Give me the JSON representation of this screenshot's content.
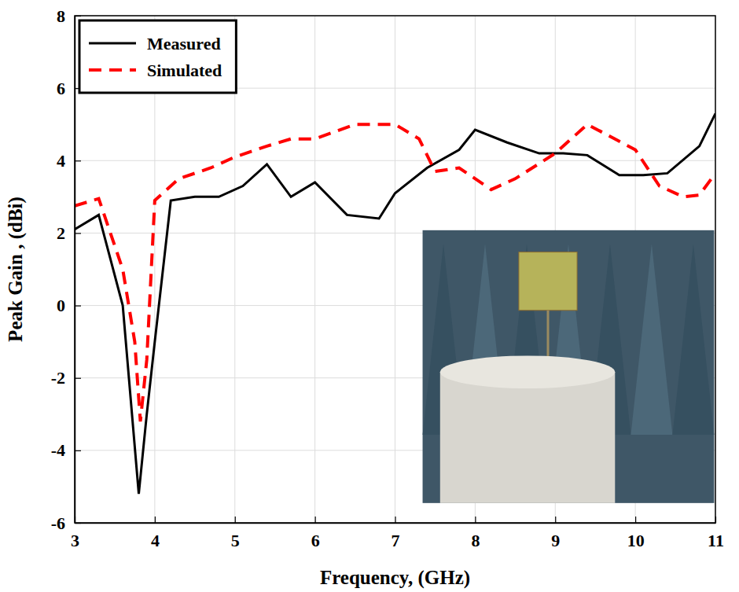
{
  "chart_data": {
    "type": "line",
    "x_label": "Frequency, (GHz)",
    "y_label": "Peak Gain , (dBi)",
    "xlim": [
      3,
      11
    ],
    "xticks": [
      3,
      4,
      5,
      6,
      7,
      8,
      9,
      10,
      11
    ],
    "ylim": [
      -6,
      8
    ],
    "yticks": [
      -6,
      -4,
      -2,
      0,
      2,
      4,
      6,
      8
    ],
    "grid": true,
    "legend": "upper left",
    "series": [
      {
        "name": "Measured",
        "color": "#000000",
        "line_style": "solid",
        "x": [
          3.0,
          3.3,
          3.6,
          3.8,
          3.9,
          4.0,
          4.2,
          4.5,
          4.8,
          5.1,
          5.4,
          5.7,
          6.0,
          6.4,
          6.8,
          7.0,
          7.4,
          7.8,
          8.0,
          8.4,
          8.8,
          9.1,
          9.4,
          9.8,
          10.1,
          10.4,
          10.8,
          11.0
        ],
        "values": [
          2.1,
          2.5,
          0.0,
          -5.2,
          -3.0,
          -1.0,
          2.9,
          3.0,
          3.0,
          3.3,
          3.9,
          3.0,
          3.4,
          2.5,
          2.4,
          3.1,
          3.8,
          4.3,
          4.85,
          4.5,
          4.2,
          4.2,
          4.15,
          3.6,
          3.6,
          3.65,
          4.4,
          5.3
        ]
      },
      {
        "name": "Simulated",
        "color": "#ff0000",
        "line_style": "dashed",
        "x": [
          3.0,
          3.3,
          3.6,
          3.75,
          3.82,
          3.9,
          4.0,
          4.3,
          4.7,
          5.0,
          5.4,
          5.7,
          6.0,
          6.5,
          7.0,
          7.3,
          7.5,
          7.8,
          8.2,
          8.5,
          9.0,
          9.4,
          10.0,
          10.3,
          10.6,
          10.8,
          11.0
        ],
        "values": [
          2.75,
          2.95,
          1.0,
          -1.0,
          -3.2,
          -1.5,
          2.9,
          3.5,
          3.8,
          4.1,
          4.4,
          4.6,
          4.6,
          5.0,
          5.0,
          4.6,
          3.7,
          3.8,
          3.2,
          3.5,
          4.2,
          5.0,
          4.3,
          3.3,
          3.0,
          3.05,
          3.65
        ]
      }
    ]
  }
}
